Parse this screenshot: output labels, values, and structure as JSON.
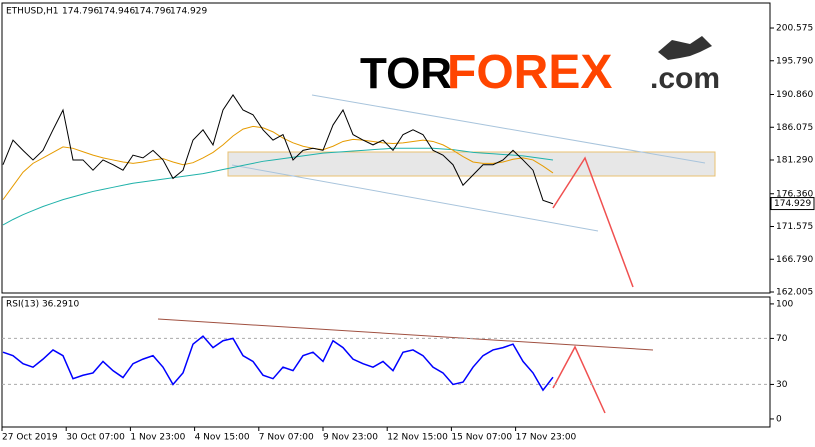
{
  "chart_data": {
    "type": "line",
    "symbol": "ETHUSD,H1",
    "ohlc": [
      174.796,
      174.946,
      174.796,
      174.929
    ],
    "logo": [
      "TOR",
      "FOREX",
      ".com"
    ],
    "time_labels": [
      "27 Oct 2019",
      "30 Oct 07:00",
      "1 Nov 23:00",
      "4 Nov 15:00",
      "7 Nov 07:00",
      "9 Nov 23:00",
      "12 Nov 15:00",
      "15 Nov 07:00",
      "17 Nov 23:00"
    ],
    "ylim": [
      161.86,
      204.23
    ],
    "yticks": [
      {
        "value": 200.575,
        "label": "200.575"
      },
      {
        "value": 195.79,
        "label": "195.790"
      },
      {
        "value": 190.86,
        "label": "190.860"
      },
      {
        "value": 186.075,
        "label": "186.075"
      },
      {
        "value": 181.29,
        "label": "181.290"
      },
      {
        "value": 176.36,
        "label": "176.360"
      },
      {
        "value": 171.575,
        "label": "171.575"
      },
      {
        "value": 166.79,
        "label": "166.790"
      },
      {
        "value": 162.005,
        "label": "162.005"
      }
    ],
    "series": [
      {
        "color": "#000000",
        "values": [
          180.6,
          184.2,
          182.7,
          181.3,
          182.7,
          185.7,
          188.6,
          181.3,
          181.3,
          179.8,
          181.3,
          180.6,
          179.8,
          182.0,
          181.6,
          182.7,
          181.3,
          178.6,
          179.8,
          184.2,
          185.7,
          183.5,
          188.6,
          190.8,
          188.6,
          187.9,
          185.7,
          184.2,
          185.0,
          181.3,
          182.7,
          183.0,
          182.7,
          186.4,
          188.6,
          185.0,
          184.2,
          183.5,
          184.2,
          182.7,
          185.0,
          185.7,
          185.0,
          182.7,
          182.0,
          180.6,
          177.6,
          179.1,
          180.6,
          180.6,
          181.3,
          182.7,
          181.3,
          179.8,
          175.4,
          174.9
        ]
      },
      {
        "color": "#e69b00",
        "values": [
          175.5,
          177.5,
          179.5,
          180.8,
          181.6,
          182.4,
          183.2,
          183.0,
          182.5,
          182.0,
          181.6,
          181.3,
          181.0,
          180.8,
          181.0,
          181.3,
          181.5,
          181.0,
          180.6,
          180.9,
          181.6,
          182.4,
          183.5,
          184.8,
          185.8,
          186.2,
          186.0,
          185.4,
          184.5,
          183.8,
          183.3,
          183.0,
          182.8,
          183.3,
          184.0,
          184.3,
          184.2,
          184.0,
          183.8,
          183.7,
          183.8,
          184.0,
          184.2,
          184.0,
          183.5,
          182.7,
          181.8,
          181.0,
          180.8,
          180.8,
          181.0,
          181.4,
          181.6,
          181.3,
          180.4,
          179.4
        ]
      },
      {
        "color": "#20b2aa",
        "values": [
          171.8,
          172.6,
          173.3,
          173.9,
          174.5,
          175.0,
          175.5,
          175.9,
          176.3,
          176.7,
          177.0,
          177.3,
          177.6,
          177.9,
          178.1,
          178.3,
          178.5,
          178.7,
          178.9,
          179.1,
          179.3,
          179.6,
          179.9,
          180.2,
          180.5,
          180.8,
          181.1,
          181.3,
          181.5,
          181.7,
          181.9,
          182.1,
          182.3,
          182.4,
          182.5,
          182.6,
          182.7,
          182.8,
          182.9,
          183.0,
          183.0,
          183.0,
          183.0,
          183.0,
          182.9,
          182.8,
          182.6,
          182.4,
          182.3,
          182.2,
          182.1,
          182.0,
          181.9,
          181.7,
          181.5,
          181.3
        ]
      }
    ],
    "rsi": {
      "label": "RSI(13) 36.2910",
      "color": "#0000ff",
      "ylim": [
        -7,
        106
      ],
      "yticks": [
        100,
        70,
        30,
        0
      ],
      "levels": [
        70,
        30
      ],
      "values": [
        58,
        55,
        48,
        45,
        52,
        60,
        55,
        35,
        38,
        40,
        50,
        42,
        36,
        48,
        52,
        55,
        45,
        30,
        40,
        65,
        72,
        62,
        68,
        70,
        55,
        50,
        38,
        35,
        45,
        42,
        55,
        58,
        50,
        68,
        62,
        52,
        48,
        45,
        50,
        42,
        58,
        60,
        55,
        45,
        40,
        30,
        32,
        45,
        55,
        60,
        62,
        65,
        50,
        40,
        25,
        36.3
      ]
    }
  }
}
